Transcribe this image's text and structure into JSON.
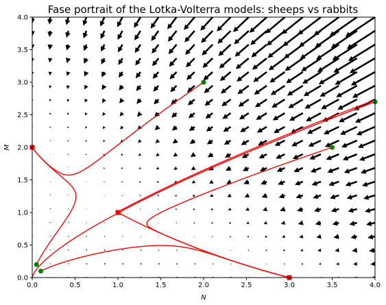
{
  "chart_data": {
    "type": "quiver",
    "title": "Fase portrait of the Lotka-Volterra models: sheeps vs rabbits",
    "xlabel": "N",
    "ylabel": "M",
    "xlim": [
      0,
      4
    ],
    "ylim": [
      0,
      4
    ],
    "x_ticks": [
      "0.0",
      "0.5",
      "1.0",
      "1.5",
      "2.0",
      "2.5",
      "3.0",
      "3.5",
      "4.0"
    ],
    "y_ticks": [
      "0.0",
      "0.5",
      "1.0",
      "1.5",
      "2.0",
      "2.5",
      "3.0",
      "3.5",
      "4.0"
    ],
    "grid": false,
    "vector_field": {
      "model": "dN/dt = N(3 - N - 2M), dM/dt = M(2 - N - M)",
      "grid_x": {
        "start": 0,
        "stop": 4,
        "count": 20
      },
      "grid_y": {
        "start": 0,
        "stop": 4,
        "count": 20
      },
      "color": "#000000"
    },
    "equilibria": {
      "color": "#ff0000",
      "points": [
        {
          "x": 0,
          "y": 2
        },
        {
          "x": 1,
          "y": 1
        },
        {
          "x": 3,
          "y": 0
        }
      ]
    },
    "initial_conditions": {
      "color": "#008000",
      "points": [
        {
          "x": 0.05,
          "y": 0.2
        },
        {
          "x": 0.1,
          "y": 0.1
        },
        {
          "x": 2.0,
          "y": 3.0
        },
        {
          "x": 3.5,
          "y": 2.0
        },
        {
          "x": 4.0,
          "y": 2.7
        }
      ]
    },
    "trajectory_color": "#ff0000"
  }
}
